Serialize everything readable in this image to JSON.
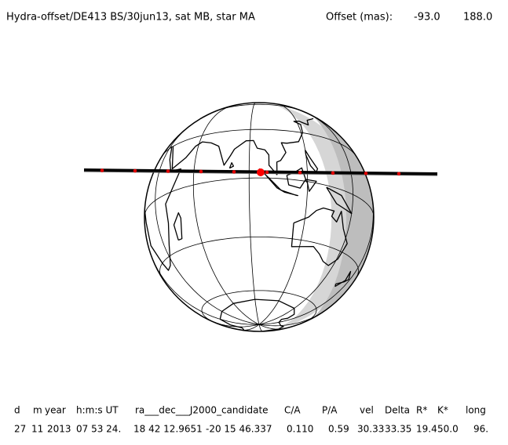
{
  "header": {
    "title": "Hydra-offset/DE413 BS/30jun13, sat MB, star MA",
    "offset_label": "Offset (mas):",
    "offset_x": "-93.0",
    "offset_y": "188.0"
  },
  "table": {
    "columns": [
      "d",
      "m",
      "year",
      "h:m:s UT",
      "ra___dec___J2000_candidate",
      "C/A",
      "P/A",
      "vel",
      "Delta",
      "R*",
      "K*",
      "long"
    ],
    "row": [
      "27",
      "11",
      "2013",
      "07 53 24.",
      "18 42 12.9651",
      "-20 15 46.337",
      "0.110",
      "0.59",
      "30.33",
      "33.35",
      "19.4",
      "50.0",
      "96."
    ]
  }
}
